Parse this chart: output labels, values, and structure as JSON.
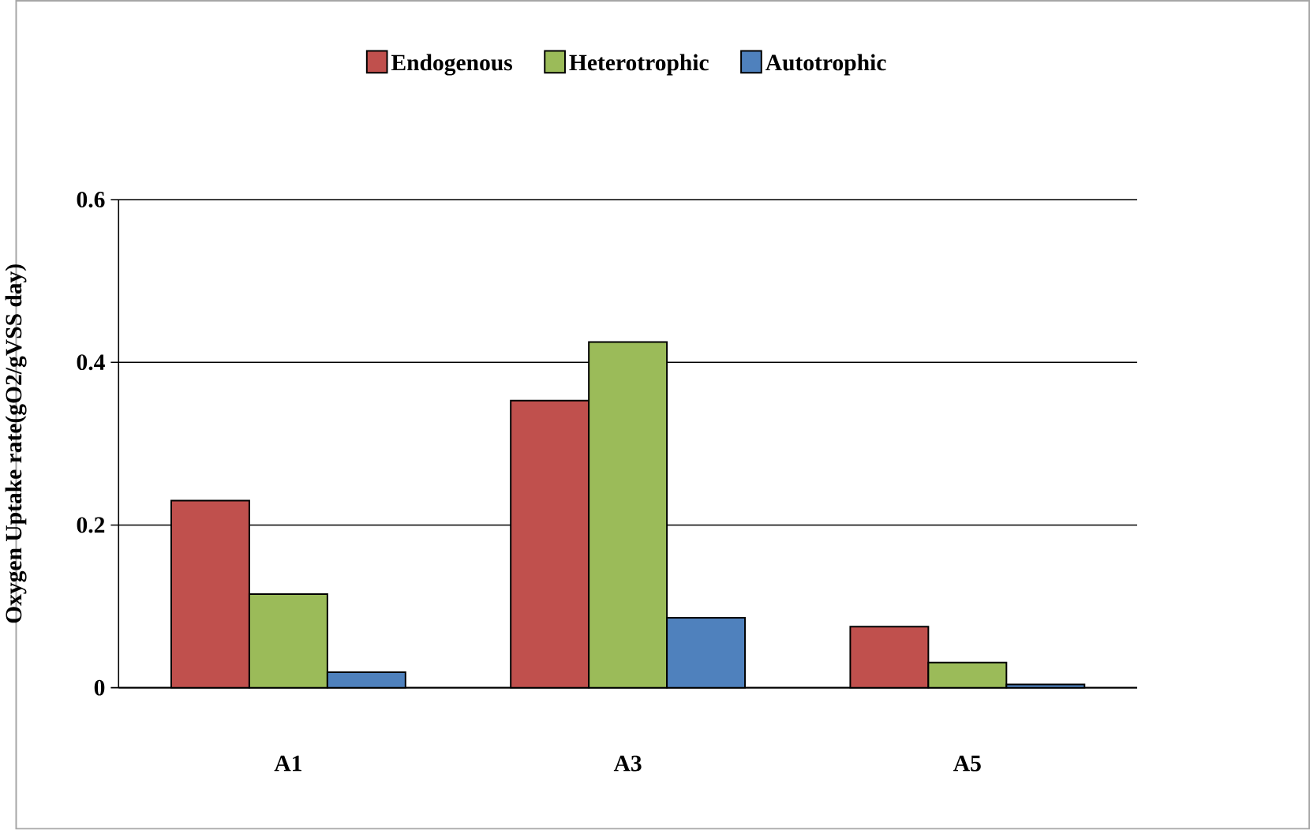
{
  "chart_data": {
    "type": "bar",
    "ylabel": "Oxygen Uptake rate(gO2/gVSS day)",
    "categories": [
      "A1",
      "A3",
      "A5"
    ],
    "series": [
      {
        "name": "Endogenous",
        "color": "#c0504d",
        "values": [
          0.23,
          0.353,
          0.075
        ]
      },
      {
        "name": "Heterotrophic",
        "color": "#9bbb59",
        "values": [
          0.115,
          0.425,
          0.031
        ]
      },
      {
        "name": "Autotrophic",
        "color": "#4f81bd",
        "values": [
          0.019,
          0.086,
          0.004
        ]
      }
    ],
    "ylim": [
      0,
      0.6
    ],
    "yticks": [
      0,
      0.2,
      0.4,
      0.6
    ],
    "grid": "y",
    "legend": "top"
  }
}
